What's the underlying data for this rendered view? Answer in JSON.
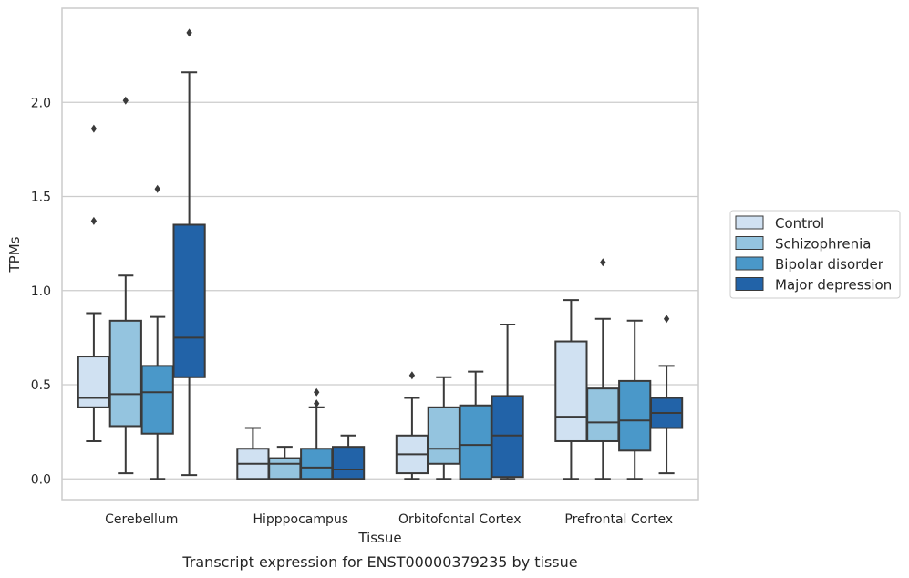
{
  "chart_data": {
    "type": "boxplot",
    "title": "",
    "caption": "Transcript expression for ENST00000379235 by tissue",
    "xlabel": "Tissue",
    "ylabel": "TPMs",
    "ylim": [
      -0.11,
      2.5
    ],
    "yticks": [
      0.0,
      0.5,
      1.0,
      1.5,
      2.0
    ],
    "ytick_labels": [
      "0.0",
      "0.5",
      "1.0",
      "1.5",
      "2.0"
    ],
    "grid": "horizontal",
    "legend_placement": "right",
    "categories": [
      "Cerebellum",
      "Hipppocampus",
      "Orbitofontal Cortex",
      "Prefrontal Cortex"
    ],
    "series": [
      {
        "name": "Control",
        "color": "#d0e1f2",
        "boxes": [
          {
            "whislo": 0.2,
            "q1": 0.38,
            "med": 0.43,
            "q3": 0.65,
            "whishi": 0.88,
            "fliers": [
              1.37,
              1.86
            ]
          },
          {
            "whislo": 0.0,
            "q1": 0.0,
            "med": 0.08,
            "q3": 0.16,
            "whishi": 0.27,
            "fliers": []
          },
          {
            "whislo": 0.0,
            "q1": 0.03,
            "med": 0.13,
            "q3": 0.23,
            "whishi": 0.43,
            "fliers": [
              0.55
            ]
          },
          {
            "whislo": 0.0,
            "q1": 0.2,
            "med": 0.33,
            "q3": 0.73,
            "whishi": 0.95,
            "fliers": []
          }
        ]
      },
      {
        "name": "Schizophrenia",
        "color": "#94c4df",
        "boxes": [
          {
            "whislo": 0.03,
            "q1": 0.28,
            "med": 0.45,
            "q3": 0.84,
            "whishi": 1.08,
            "fliers": [
              2.01
            ]
          },
          {
            "whislo": 0.0,
            "q1": 0.0,
            "med": 0.08,
            "q3": 0.11,
            "whishi": 0.17,
            "fliers": []
          },
          {
            "whislo": 0.0,
            "q1": 0.08,
            "med": 0.16,
            "q3": 0.38,
            "whishi": 0.54,
            "fliers": []
          },
          {
            "whislo": 0.0,
            "q1": 0.2,
            "med": 0.3,
            "q3": 0.48,
            "whishi": 0.85,
            "fliers": [
              1.15
            ]
          }
        ]
      },
      {
        "name": "Bipolar disorder",
        "color": "#4a98c9",
        "boxes": [
          {
            "whislo": 0.0,
            "q1": 0.24,
            "med": 0.46,
            "q3": 0.6,
            "whishi": 0.86,
            "fliers": [
              1.54
            ]
          },
          {
            "whislo": 0.0,
            "q1": 0.0,
            "med": 0.06,
            "q3": 0.16,
            "whishi": 0.38,
            "fliers": [
              0.46,
              0.4
            ]
          },
          {
            "whislo": 0.0,
            "q1": 0.0,
            "med": 0.18,
            "q3": 0.39,
            "whishi": 0.57,
            "fliers": []
          },
          {
            "whislo": 0.0,
            "q1": 0.15,
            "med": 0.31,
            "q3": 0.52,
            "whishi": 0.84,
            "fliers": []
          }
        ]
      },
      {
        "name": "Major depression",
        "color": "#2263a8",
        "boxes": [
          {
            "whislo": 0.02,
            "q1": 0.54,
            "med": 0.75,
            "q3": 1.35,
            "whishi": 2.16,
            "fliers": [
              2.37
            ]
          },
          {
            "whislo": 0.0,
            "q1": 0.0,
            "med": 0.05,
            "q3": 0.17,
            "whishi": 0.23,
            "fliers": []
          },
          {
            "whislo": 0.0,
            "q1": 0.01,
            "med": 0.23,
            "q3": 0.44,
            "whishi": 0.82,
            "fliers": []
          },
          {
            "whislo": 0.03,
            "q1": 0.27,
            "med": 0.35,
            "q3": 0.43,
            "whishi": 0.6,
            "fliers": [
              0.85
            ]
          }
        ]
      }
    ]
  }
}
